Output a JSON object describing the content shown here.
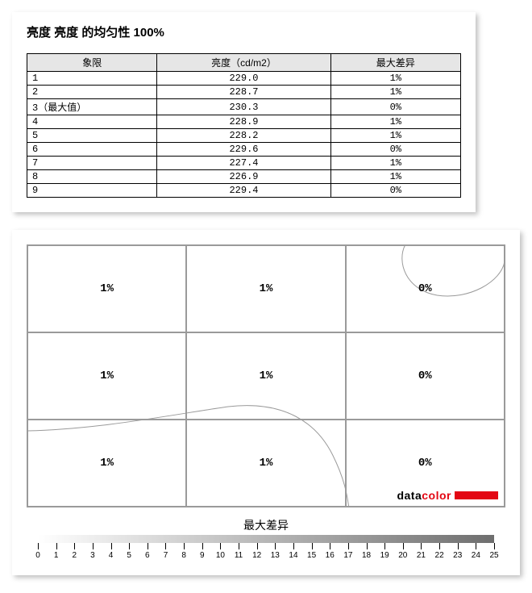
{
  "page": {
    "title": "亮度 亮度 的均匀性 100%"
  },
  "table": {
    "columns": [
      "象限",
      "亮度（cd/m2）",
      "最大差异"
    ],
    "header_bg": "#e6e6e6",
    "border_color": "#000000",
    "rows": [
      {
        "q": "1",
        "lum": "229.0",
        "diff": "1%"
      },
      {
        "q": "2",
        "lum": "228.7",
        "diff": "1%"
      },
      {
        "q": "3（最大值）",
        "lum": "230.3",
        "diff": "0%"
      },
      {
        "q": "4",
        "lum": "228.9",
        "diff": "1%"
      },
      {
        "q": "5",
        "lum": "228.2",
        "diff": "1%"
      },
      {
        "q": "6",
        "lum": "229.6",
        "diff": "0%"
      },
      {
        "q": "7",
        "lum": "227.4",
        "diff": "1%"
      },
      {
        "q": "8",
        "lum": "226.9",
        "diff": "1%"
      },
      {
        "q": "9",
        "lum": "229.4",
        "diff": "0%"
      }
    ]
  },
  "grid": {
    "type": "heatmap-grid",
    "rows": 3,
    "cols": 3,
    "cell_border": "#9a9a9a",
    "cells": [
      "1%",
      "1%",
      "0%",
      "1%",
      "1%",
      "0%",
      "1%",
      "1%",
      "0%"
    ],
    "contour_color": "#9a9a9a",
    "contour_width": 1,
    "logo": {
      "text_left": "data",
      "text_right": "color",
      "color_left": "#000000",
      "color_right": "#e30613",
      "swatch_color": "#e30613"
    }
  },
  "scale": {
    "label": "最大差异",
    "min": 0,
    "max": 25,
    "step": 1,
    "gradient_start": "#ffffff",
    "gradient_end": "#6e6e6e",
    "tick_color": "#000000",
    "font_size": 10
  }
}
